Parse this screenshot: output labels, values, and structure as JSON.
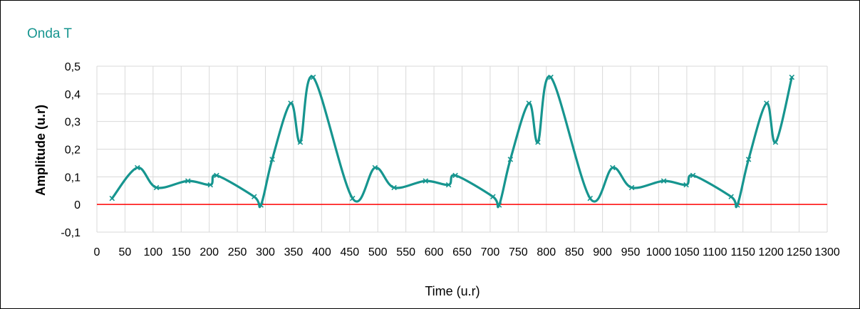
{
  "chart_data": {
    "type": "line",
    "title": "Onda T",
    "xlabel": "Time (u.r)",
    "ylabel": "Amplitude (u.r)",
    "xlim": [
      0,
      1300
    ],
    "ylim": [
      -0.1,
      0.5
    ],
    "xticks": [
      "0",
      "50",
      "100",
      "150",
      "200",
      "250",
      "300",
      "350",
      "400",
      "450",
      "500",
      "550",
      "600",
      "650",
      "700",
      "750",
      "800",
      "850",
      "900",
      "950",
      "1000",
      "1050",
      "1100",
      "1150",
      "1200",
      "1250",
      "1300"
    ],
    "yticks": [
      "0,5",
      "0,4",
      "0,3",
      "0,2",
      "0,1",
      "0",
      "-0,1"
    ],
    "grid": true,
    "legend": "none",
    "series": [
      {
        "color": "#16958F",
        "marker": "x",
        "smooth": true,
        "x": [
          27,
          72,
          106,
          162,
          202,
          213,
          280,
          292,
          312,
          345,
          362,
          385,
          455,
          495,
          529,
          585,
          626,
          638,
          705,
          716,
          736,
          769,
          785,
          808,
          878,
          918,
          952,
          1009,
          1049,
          1061,
          1129,
          1140,
          1160,
          1192,
          1208,
          1237
        ],
        "y": [
          0.022,
          0.133,
          0.061,
          0.085,
          0.071,
          0.105,
          0.028,
          -0.002,
          0.163,
          0.366,
          0.225,
          0.46,
          0.022,
          0.133,
          0.061,
          0.085,
          0.071,
          0.105,
          0.028,
          -0.002,
          0.163,
          0.366,
          0.225,
          0.46,
          0.022,
          0.133,
          0.061,
          0.085,
          0.071,
          0.105,
          0.028,
          -0.002,
          0.163,
          0.366,
          0.225,
          0.46
        ]
      }
    ],
    "reference_line": {
      "y": 0,
      "color": "#FF0000"
    },
    "colors": {
      "title": "#16958F",
      "series": "#16958F",
      "grid": "#D9D9D9",
      "zero_line": "#FF0000"
    }
  }
}
